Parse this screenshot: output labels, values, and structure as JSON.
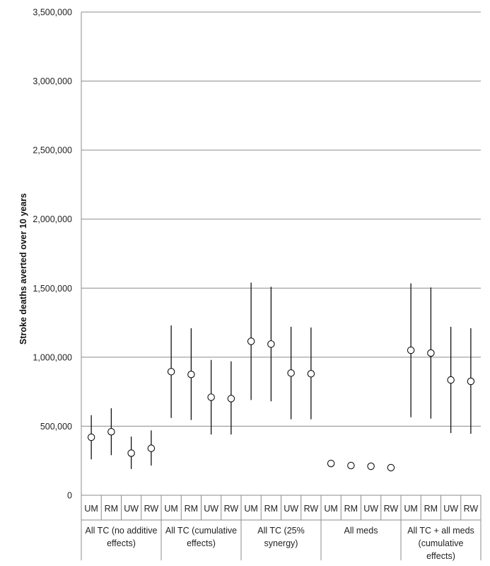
{
  "chart_data": {
    "type": "scatter",
    "ylabel": "Stroke deaths averted over 10 years",
    "ylim": [
      0,
      3500000
    ],
    "yticks": [
      0,
      500000,
      1000000,
      1500000,
      2000000,
      2500000,
      3000000,
      3500000
    ],
    "ytick_labels": [
      "0",
      "500,000",
      "1,000,000",
      "1,500,000",
      "2,000,000",
      "2,500,000",
      "3,000,000",
      "3,500,000"
    ],
    "grid": true,
    "groups": [
      {
        "label_lines": [
          "All TC (no additive",
          "effects)"
        ],
        "points": [
          {
            "sub": "UM",
            "value": 420000,
            "low": 260000,
            "high": 580000
          },
          {
            "sub": "RM",
            "value": 460000,
            "low": 290000,
            "high": 630000
          },
          {
            "sub": "UW",
            "value": 305000,
            "low": 190000,
            "high": 425000
          },
          {
            "sub": "RW",
            "value": 340000,
            "low": 215000,
            "high": 470000
          }
        ]
      },
      {
        "label_lines": [
          "All TC (cumulative",
          "effects)"
        ],
        "points": [
          {
            "sub": "UM",
            "value": 895000,
            "low": 560000,
            "high": 1230000
          },
          {
            "sub": "RM",
            "value": 875000,
            "low": 545000,
            "high": 1210000
          },
          {
            "sub": "UW",
            "value": 710000,
            "low": 440000,
            "high": 980000
          },
          {
            "sub": "RW",
            "value": 700000,
            "low": 440000,
            "high": 970000
          }
        ]
      },
      {
        "label_lines": [
          "All TC (25%",
          "synergy)"
        ],
        "points": [
          {
            "sub": "UM",
            "value": 1115000,
            "low": 690000,
            "high": 1540000
          },
          {
            "sub": "RM",
            "value": 1095000,
            "low": 680000,
            "high": 1510000
          },
          {
            "sub": "UW",
            "value": 885000,
            "low": 550000,
            "high": 1220000
          },
          {
            "sub": "RW",
            "value": 880000,
            "low": 550000,
            "high": 1215000
          }
        ]
      },
      {
        "label_lines": [
          "All meds"
        ],
        "points": [
          {
            "sub": "UM",
            "value": 230000
          },
          {
            "sub": "RM",
            "value": 215000
          },
          {
            "sub": "UW",
            "value": 210000
          },
          {
            "sub": "RW",
            "value": 200000
          }
        ]
      },
      {
        "label_lines": [
          "All TC + all meds",
          "(cumulative",
          "effects)"
        ],
        "points": [
          {
            "sub": "UM",
            "value": 1050000,
            "low": 565000,
            "high": 1535000
          },
          {
            "sub": "RM",
            "value": 1030000,
            "low": 555000,
            "high": 1505000
          },
          {
            "sub": "UW",
            "value": 835000,
            "low": 450000,
            "high": 1220000
          },
          {
            "sub": "RW",
            "value": 825000,
            "low": 445000,
            "high": 1210000
          }
        ]
      }
    ]
  }
}
